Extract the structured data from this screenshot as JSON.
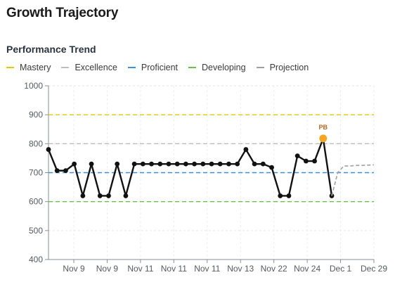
{
  "header": {
    "title": "Growth Trajectory"
  },
  "section": {
    "title": "Performance Trend"
  },
  "legend": [
    {
      "label": "Mastery",
      "color": "#e2c800",
      "dash": "solid"
    },
    {
      "label": "Excellence",
      "color": "#bdbdbd",
      "dash": "solid"
    },
    {
      "label": "Proficient",
      "color": "#3b8fd9",
      "dash": "solid"
    },
    {
      "label": "Developing",
      "color": "#6cc24a",
      "dash": "solid"
    },
    {
      "label": "Projection",
      "color": "#9e9e9e",
      "dash": "solid"
    }
  ],
  "chart_data": {
    "type": "line",
    "title": "",
    "xlabel": "",
    "ylabel": "",
    "ylim": [
      400,
      1000
    ],
    "y_ticks": [
      "1000",
      "900",
      "800",
      "700",
      "600",
      "500",
      "400"
    ],
    "y_tick_values": [
      1000,
      900,
      800,
      700,
      600,
      500,
      400
    ],
    "x_ticks": [
      "Nov 9",
      "Nov 9",
      "Nov 11",
      "Nov 11",
      "Nov 11",
      "Nov 13",
      "Nov 22",
      "Nov 24",
      "Dec 1",
      "Dec 29"
    ],
    "grid": true,
    "thresholds": [
      {
        "name": "Mastery",
        "value": 900,
        "color": "#e2c800"
      },
      {
        "name": "Excellence",
        "value": 800,
        "color": "#bdbdbd"
      },
      {
        "name": "Proficient",
        "value": 700,
        "color": "#3b8fd9"
      },
      {
        "name": "Developing",
        "value": 600,
        "color": "#6cc24a"
      }
    ],
    "series": [
      {
        "values": [
          780,
          707,
          707,
          730,
          620,
          730,
          620,
          620,
          730,
          620,
          730,
          730,
          730,
          730,
          730,
          730,
          730,
          730,
          730,
          730,
          730,
          730,
          730,
          780,
          730,
          730,
          718,
          620,
          620,
          758,
          740,
          740,
          818,
          620
        ],
        "color": "#111111"
      },
      {
        "name": "Projection",
        "values": [
          620,
          700,
          723,
          723,
          725,
          725,
          726,
          727
        ],
        "color": "#a8a8a8",
        "dashed": true
      }
    ],
    "annotations": [
      {
        "text": "PB",
        "point_index": 32,
        "value": 818,
        "color": "#f5a623"
      }
    ]
  }
}
